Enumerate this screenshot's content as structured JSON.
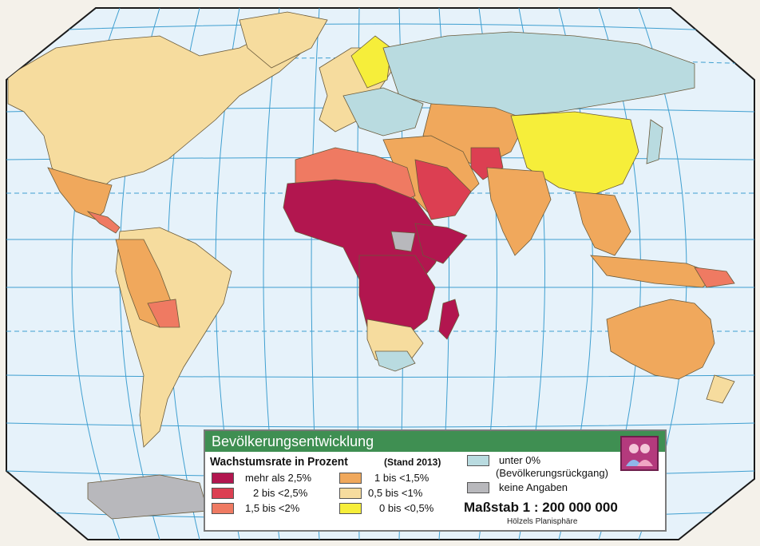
{
  "map": {
    "projection": "Hölzels Planisphäre",
    "colors": {
      "ocean": "#e6f2fa",
      "graticule": "#3f9fd0",
      "outside": "#f4f1ea",
      "class_gt25": "#b2164f",
      "class_2_25": "#dc3f52",
      "class_15_2": "#ef7a62",
      "class_1_15": "#f0a85c",
      "class_05_1": "#f6dc9e",
      "class_0_05": "#f6ee3a",
      "class_neg": "#b9dbe0",
      "class_na": "#b8b8bc"
    }
  },
  "legend": {
    "title": "Bevölkerungsentwicklung",
    "heading": "Wachstumsrate in Prozent",
    "stand": "(Stand 2013)",
    "items": [
      {
        "label": "mehr als 2,5%",
        "color": "#b2164f"
      },
      {
        "label": "2 bis <2,5%",
        "color": "#dc3f52"
      },
      {
        "label": "1,5 bis <2%",
        "color": "#ef7a62"
      },
      {
        "label": "1 bis <1,5%",
        "color": "#f0a85c"
      },
      {
        "label": "0,5 bis <1%",
        "color": "#f6dc9e"
      },
      {
        "label": "0 bis <0,5%",
        "color": "#f6ee3a"
      },
      {
        "label": "unter 0%",
        "color": "#b9dbe0"
      },
      {
        "label": "(Bevölkerungsrückgang)",
        "color": ""
      },
      {
        "label": "keine Angaben",
        "color": "#b8b8bc"
      }
    ],
    "scale": "Maßstab 1 : 200 000 000",
    "scale_sub": "Hölzels Planisphäre",
    "icon": "people-icon"
  }
}
